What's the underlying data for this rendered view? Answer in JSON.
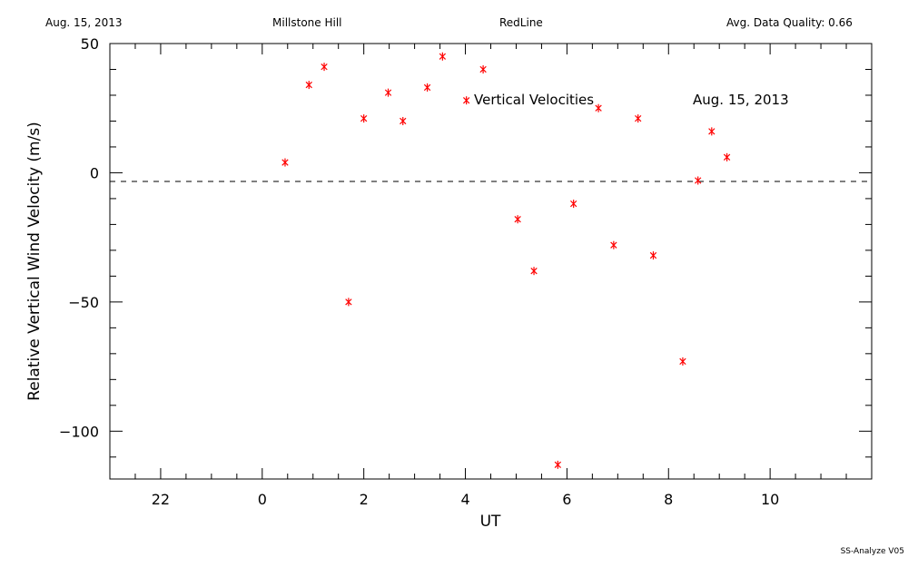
{
  "header": {
    "date": "Aug. 15, 2013",
    "site": "Millstone Hill",
    "instrument": "RedLine",
    "quality": "Avg. Data Quality: 0.66"
  },
  "footer": {
    "version": "SS-Analyze V05"
  },
  "colors": {
    "points": "#ff0000",
    "axes": "#000000",
    "zero_line": "#000000"
  },
  "chart_data": {
    "type": "scatter",
    "title": "",
    "xlabel": "UT",
    "ylabel": "Relative Vertical Wind Velocity (m/s)",
    "x_tick_labels": [
      "22",
      "0",
      "2",
      "4",
      "6",
      "8",
      "10"
    ],
    "x_tick_hours_unwrapped": [
      22,
      24,
      26,
      28,
      30,
      32,
      34
    ],
    "y_tick_labels": [
      "50",
      "0",
      "−50",
      "−100"
    ],
    "y_tick_values": [
      50,
      0,
      -50,
      -100
    ],
    "xlim_hours_unwrapped": [
      21,
      36
    ],
    "ylim": [
      -118.5,
      50
    ],
    "zero_line": "dashed",
    "annotations": [
      "Vertical Velocities",
      "Aug. 15, 2013"
    ],
    "series": [
      {
        "marker": "asterisk",
        "points": [
          {
            "x": 0.45,
            "y": 4
          },
          {
            "x": 0.92,
            "y": 34
          },
          {
            "x": 1.22,
            "y": 41
          },
          {
            "x": 1.7,
            "y": -50
          },
          {
            "x": 2.0,
            "y": 21
          },
          {
            "x": 2.48,
            "y": 31
          },
          {
            "x": 2.77,
            "y": 20
          },
          {
            "x": 3.25,
            "y": 33
          },
          {
            "x": 3.55,
            "y": 45
          },
          {
            "x": 4.02,
            "y": 28
          },
          {
            "x": 4.35,
            "y": 40
          },
          {
            "x": 5.03,
            "y": -18
          },
          {
            "x": 5.35,
            "y": -38
          },
          {
            "x": 5.82,
            "y": -113
          },
          {
            "x": 6.13,
            "y": -12
          },
          {
            "x": 6.62,
            "y": 25
          },
          {
            "x": 6.92,
            "y": -28
          },
          {
            "x": 7.4,
            "y": 21
          },
          {
            "x": 7.7,
            "y": -32
          },
          {
            "x": 8.28,
            "y": -73
          },
          {
            "x": 8.58,
            "y": -3
          },
          {
            "x": 8.85,
            "y": 16
          },
          {
            "x": 9.15,
            "y": 6
          }
        ]
      }
    ]
  }
}
